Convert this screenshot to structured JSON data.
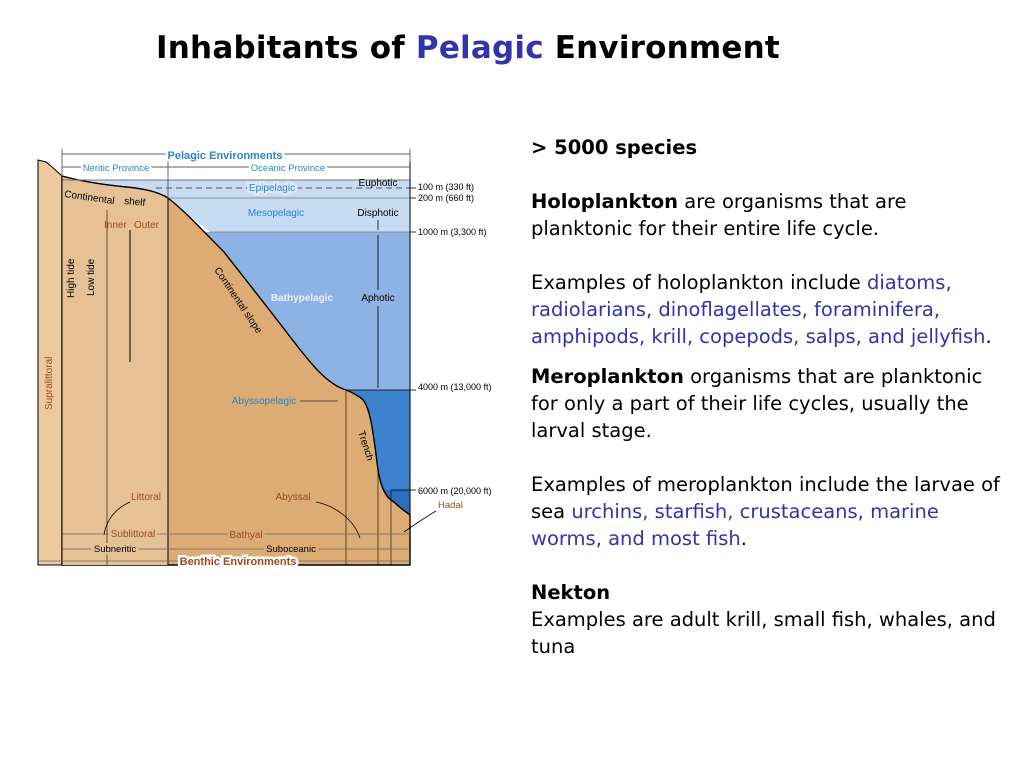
{
  "slide": {
    "title_pre": "Inhabitants of ",
    "title_accent": "Pelagic",
    "title_post": " Environment"
  },
  "colors": {
    "accent": "#3333aa",
    "sediment": "#dcac74",
    "supralittoral": "#edc9a0",
    "shelf_fill": "#e6c195",
    "water_light": "#c7dbf3",
    "water_mid": "#8fb2e4",
    "water_deep": "#3d82cf",
    "label_blue": "#2b84c8",
    "label_brown": "#9a4a22"
  },
  "diagram": {
    "pelagic_environments": "Pelagic Environments",
    "neritic_province": "Neritic Province",
    "oceanic_province": "Oceanic Province",
    "epipelagic": "Epipelagic",
    "mesopelagic": "Mesopelagic",
    "bathypelagic": "Bathypelagic",
    "abyssopelagic": "Abyssopelagic",
    "euphotic": "Euphotic",
    "disphotic": "Disphotic",
    "aphotic": "Aphotic",
    "depth_100": "100 m (330 ft)",
    "depth_200": "200 m (660 ft)",
    "depth_1000": "1000 m (3,300 ft)",
    "depth_4000": "4000 m (13,000 ft)",
    "depth_6000": "6000 m (20,000 ft)",
    "hadal": "Hadal",
    "continental": "Continental",
    "shelf": "shelf",
    "inner": "Inner",
    "outer": "Outer",
    "high_tide": "High tide",
    "low_tide": "Low tide",
    "supralittoral": "Supralittoral",
    "continental_slope": "Continental slope",
    "trench": "Trench",
    "littoral": "Littoral",
    "abyssal": "Abyssal",
    "sublittoral": "Sublittoral",
    "bathyal": "Bathyal",
    "subneritic": "Subneritic",
    "suboceanic": "Suboceanic",
    "benthic_environments": "Benthic Environments"
  },
  "text": {
    "species_count": "> 5000 species",
    "holo_term": "Holoplankton",
    "holo_def": " are organisms that are planktonic for their entire life cycle.",
    "holo_ex_intro": "Examples of holoplankton include ",
    "holo_ex_list": "diatoms, radiolarians, dinoflagellates, foraminifera, amphipods, krill, copepods, salps, and jellyfish",
    "period_1": ".",
    "mero_term": "Meroplankton",
    "mero_def": " organisms that are planktonic for only a part of their life cycles, usually the larval stage.",
    "mero_ex_intro": "Examples of meroplankton include the larvae of sea ",
    "mero_ex_list": "urchins, starfish, crustaceans, marine worms, and most fish",
    "period_2": ".",
    "nekton_term": "Nekton",
    "nekton_def": "Examples are adult krill, small fish, whales, and tuna"
  }
}
